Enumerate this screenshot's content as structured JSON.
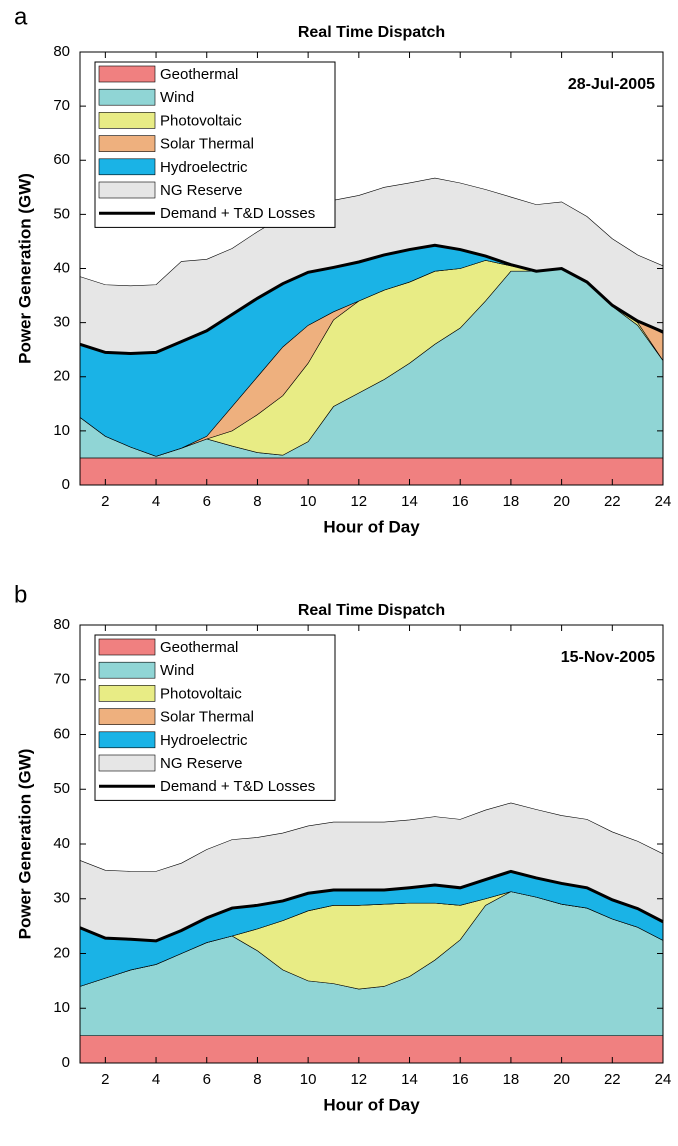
{
  "chart_data": [
    {
      "type": "stacked-area",
      "panel_label": "a",
      "title": "Real Time Dispatch",
      "annotation": "28-Jul-2005",
      "x_label": "Hour of Day",
      "y_label": "Power Generation (GW)",
      "x": [
        1,
        2,
        3,
        4,
        5,
        6,
        7,
        8,
        9,
        10,
        11,
        12,
        13,
        14,
        15,
        16,
        17,
        18,
        19,
        20,
        21,
        22,
        23,
        24
      ],
      "xlim": [
        1,
        24
      ],
      "xticks": [
        2,
        4,
        6,
        8,
        10,
        12,
        14,
        16,
        18,
        20,
        22,
        24
      ],
      "ylim": [
        0,
        80
      ],
      "yticks": [
        0,
        10,
        20,
        30,
        40,
        50,
        60,
        70,
        80
      ],
      "legend": "top-left",
      "series": [
        {
          "name": "Geothermal",
          "color": "#f08080",
          "values": [
            5,
            5,
            5,
            5,
            5,
            5,
            5,
            5,
            5,
            5,
            5,
            5,
            5,
            5,
            5,
            5,
            5,
            5,
            5,
            5,
            5,
            5,
            5,
            5
          ]
        },
        {
          "name": "Wind",
          "color": "#90d5d5",
          "values": [
            7.5,
            4,
            2,
            0.3,
            1.8,
            3.5,
            2.2,
            1,
            0.5,
            3,
            9.5,
            12,
            14.5,
            17.5,
            21,
            24,
            29,
            34.5,
            34.5,
            35,
            32.5,
            28,
            24.5,
            18
          ]
        },
        {
          "name": "Photovoltaic",
          "color": "#e8ec85",
          "values": [
            0,
            0,
            0,
            0,
            0,
            0,
            2.8,
            7,
            11,
            14.5,
            16,
            17,
            16.5,
            15,
            13.5,
            11,
            7.5,
            1,
            0,
            0,
            0,
            0,
            0.5,
            0
          ]
        },
        {
          "name": "Solar Thermal",
          "color": "#eeb07e",
          "values": [
            0,
            0,
            0,
            0,
            0,
            0.5,
            4.5,
            7,
            9,
            7,
            1.5,
            0,
            0,
            0,
            0,
            0,
            0,
            0,
            0,
            0,
            0,
            0,
            0.3,
            5
          ]
        },
        {
          "name": "Hydroelectric",
          "color": "#1ab3e6",
          "values": [
            13.5,
            15.5,
            17.3,
            19.2,
            19.7,
            19.5,
            17,
            14.5,
            11.7,
            9.8,
            8.2,
            7.2,
            6.5,
            6,
            4.8,
            3.5,
            0.8,
            0.2,
            0,
            0,
            0,
            0.2,
            0,
            0.3
          ]
        },
        {
          "name": "NG Reserve",
          "color": "#e6e6e6",
          "values": [
            12.5,
            12.5,
            12.5,
            12.5,
            14.8,
            13.2,
            12.2,
            12.3,
            12.4,
            11.7,
            12.4,
            12.3,
            12.5,
            12.3,
            12.4,
            12.3,
            12.3,
            12.5,
            12.3,
            12.3,
            12.1,
            12.3,
            12.2,
            12.2
          ]
        }
      ],
      "demand": {
        "name": "Demand + T&D Losses",
        "color": "#000000",
        "values": [
          26,
          24.5,
          24.3,
          24.5,
          26.5,
          28.5,
          31.5,
          34.5,
          37.2,
          39.3,
          40.2,
          41.2,
          42.5,
          43.5,
          44.3,
          43.5,
          42.3,
          40.7,
          39.5,
          40,
          37.5,
          33.2,
          30.3,
          28.3
        ]
      }
    },
    {
      "type": "stacked-area",
      "panel_label": "b",
      "title": "Real Time Dispatch",
      "annotation": "15-Nov-2005",
      "x_label": "Hour of Day",
      "y_label": "Power Generation (GW)",
      "x": [
        1,
        2,
        3,
        4,
        5,
        6,
        7,
        8,
        9,
        10,
        11,
        12,
        13,
        14,
        15,
        16,
        17,
        18,
        19,
        20,
        21,
        22,
        23,
        24
      ],
      "xlim": [
        1,
        24
      ],
      "xticks": [
        2,
        4,
        6,
        8,
        10,
        12,
        14,
        16,
        18,
        20,
        22,
        24
      ],
      "ylim": [
        0,
        80
      ],
      "yticks": [
        0,
        10,
        20,
        30,
        40,
        50,
        60,
        70,
        80
      ],
      "legend": "top-left",
      "series": [
        {
          "name": "Geothermal",
          "color": "#f08080",
          "values": [
            5,
            5,
            5,
            5,
            5,
            5,
            5,
            5,
            5,
            5,
            5,
            5,
            5,
            5,
            5,
            5,
            5,
            5,
            5,
            5,
            5,
            5,
            5,
            5
          ]
        },
        {
          "name": "Wind",
          "color": "#90d5d5",
          "values": [
            9,
            10.5,
            12,
            13,
            15,
            17,
            18.2,
            15.5,
            12,
            10,
            9.5,
            8.5,
            9,
            10.8,
            13.8,
            17.5,
            23.8,
            26.3,
            25.3,
            24,
            23.3,
            21.3,
            19.8,
            17.4
          ]
        },
        {
          "name": "Photovoltaic",
          "color": "#e8ec85",
          "values": [
            0,
            0,
            0,
            0,
            0,
            0,
            0,
            4,
            9,
            12.8,
            14.3,
            15.3,
            15,
            13.4,
            10.4,
            6.3,
            1.2,
            0,
            0,
            0,
            0,
            0,
            0,
            0
          ]
        },
        {
          "name": "Solar Thermal",
          "color": "#eeb07e",
          "values": [
            0,
            0,
            0,
            0,
            0,
            0,
            0,
            0,
            0,
            0,
            0,
            0,
            0,
            0,
            0,
            0,
            0,
            0,
            0,
            0,
            0,
            0,
            0,
            0
          ]
        },
        {
          "name": "Hydroelectric",
          "color": "#1ab3e6",
          "values": [
            10.7,
            7.3,
            5.6,
            4.3,
            4.2,
            4.5,
            5.1,
            4.3,
            3.6,
            3.2,
            2.8,
            2.8,
            2.6,
            2.8,
            3.3,
            3.2,
            3.5,
            3.7,
            3.5,
            3.8,
            3.7,
            3.5,
            3.4,
            3.4
          ]
        },
        {
          "name": "NG Reserve",
          "color": "#e6e6e6",
          "values": [
            12.3,
            12.4,
            12.4,
            12.7,
            12.3,
            12.5,
            12.5,
            12.4,
            12.4,
            12.3,
            12.4,
            12.4,
            12.4,
            12.4,
            12.5,
            12.5,
            12.7,
            12.5,
            12.5,
            12.4,
            12.5,
            12.4,
            12.3,
            12.4
          ]
        }
      ],
      "demand": {
        "name": "Demand + T&D Losses",
        "color": "#000000",
        "values": [
          24.7,
          22.8,
          22.6,
          22.3,
          24.2,
          26.5,
          28.3,
          28.8,
          29.6,
          31,
          31.6,
          31.6,
          31.6,
          32,
          32.5,
          32,
          33.5,
          35,
          33.8,
          32.8,
          32,
          29.8,
          28.2,
          25.8
        ]
      }
    }
  ]
}
